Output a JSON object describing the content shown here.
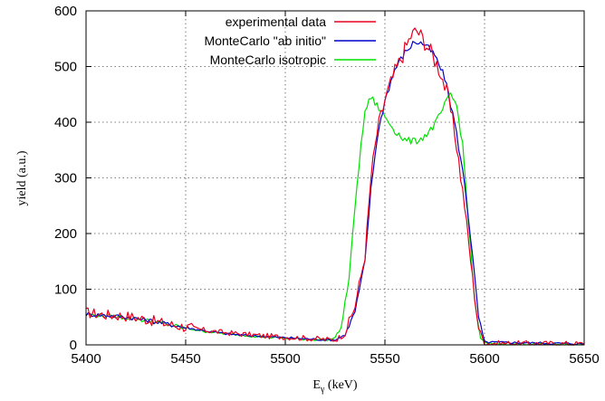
{
  "chart_data": {
    "type": "line",
    "title": "",
    "xlabel_main": "E",
    "xlabel_sub": "γ",
    "xlabel_unit": " (keV)",
    "ylabel": "yield (a.u.)",
    "xlim": [
      5400,
      5650
    ],
    "ylim": [
      0,
      600
    ],
    "xticks": [
      5400,
      5450,
      5500,
      5550,
      5600,
      5650
    ],
    "yticks": [
      0,
      100,
      200,
      300,
      400,
      500,
      600
    ],
    "grid": true,
    "legend_position": "top-center",
    "series": [
      {
        "name": "experimental data",
        "color": "#e8001e",
        "noise": 10,
        "points": [
          [
            5400,
            58
          ],
          [
            5410,
            54
          ],
          [
            5420,
            52
          ],
          [
            5430,
            46
          ],
          [
            5440,
            38
          ],
          [
            5450,
            32
          ],
          [
            5460,
            26
          ],
          [
            5470,
            22
          ],
          [
            5480,
            19
          ],
          [
            5490,
            16
          ],
          [
            5500,
            14
          ],
          [
            5510,
            12
          ],
          [
            5520,
            10
          ],
          [
            5525,
            9
          ],
          [
            5530,
            20
          ],
          [
            5535,
            70
          ],
          [
            5540,
            160
          ],
          [
            5543,
            300
          ],
          [
            5546,
            380
          ],
          [
            5550,
            440
          ],
          [
            5555,
            490
          ],
          [
            5560,
            530
          ],
          [
            5563,
            555
          ],
          [
            5566,
            565
          ],
          [
            5570,
            545
          ],
          [
            5574,
            520
          ],
          [
            5578,
            490
          ],
          [
            5582,
            440
          ],
          [
            5586,
            360
          ],
          [
            5590,
            250
          ],
          [
            5594,
            120
          ],
          [
            5597,
            30
          ],
          [
            5600,
            3
          ],
          [
            5650,
            2
          ]
        ]
      },
      {
        "name": "MonteCarlo \"ab initio\"",
        "color": "#0000c8",
        "noise": 4,
        "points": [
          [
            5400,
            55
          ],
          [
            5410,
            53
          ],
          [
            5420,
            50
          ],
          [
            5430,
            45
          ],
          [
            5440,
            38
          ],
          [
            5450,
            31
          ],
          [
            5460,
            25
          ],
          [
            5470,
            20
          ],
          [
            5480,
            17
          ],
          [
            5490,
            15
          ],
          [
            5500,
            13
          ],
          [
            5510,
            11
          ],
          [
            5520,
            9
          ],
          [
            5525,
            9
          ],
          [
            5530,
            18
          ],
          [
            5535,
            60
          ],
          [
            5540,
            150
          ],
          [
            5543,
            280
          ],
          [
            5546,
            370
          ],
          [
            5550,
            440
          ],
          [
            5555,
            495
          ],
          [
            5560,
            525
          ],
          [
            5565,
            545
          ],
          [
            5570,
            540
          ],
          [
            5575,
            520
          ],
          [
            5580,
            480
          ],
          [
            5585,
            400
          ],
          [
            5590,
            290
          ],
          [
            5594,
            160
          ],
          [
            5597,
            50
          ],
          [
            5600,
            5
          ],
          [
            5650,
            2
          ]
        ]
      },
      {
        "name": "MonteCarlo  isotropic",
        "color": "#00e000",
        "noise": 4,
        "points": [
          [
            5400,
            54
          ],
          [
            5410,
            52
          ],
          [
            5420,
            49
          ],
          [
            5430,
            44
          ],
          [
            5440,
            37
          ],
          [
            5450,
            30
          ],
          [
            5460,
            24
          ],
          [
            5470,
            20
          ],
          [
            5480,
            17
          ],
          [
            5490,
            14
          ],
          [
            5500,
            12
          ],
          [
            5510,
            10
          ],
          [
            5520,
            9
          ],
          [
            5524,
            10
          ],
          [
            5528,
            30
          ],
          [
            5532,
            120
          ],
          [
            5536,
            290
          ],
          [
            5540,
            420
          ],
          [
            5543,
            445
          ],
          [
            5546,
            430
          ],
          [
            5550,
            410
          ],
          [
            5555,
            385
          ],
          [
            5560,
            368
          ],
          [
            5565,
            365
          ],
          [
            5570,
            375
          ],
          [
            5575,
            395
          ],
          [
            5580,
            430
          ],
          [
            5583,
            450
          ],
          [
            5586,
            430
          ],
          [
            5589,
            360
          ],
          [
            5592,
            220
          ],
          [
            5595,
            80
          ],
          [
            5598,
            10
          ],
          [
            5602,
            2
          ],
          [
            5650,
            1
          ]
        ]
      }
    ]
  }
}
